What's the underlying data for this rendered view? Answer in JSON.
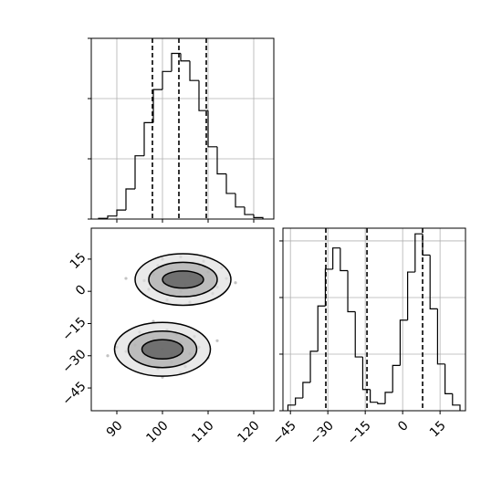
{
  "chart_data": [
    {
      "type": "histogram",
      "bins": [
        86,
        88,
        90,
        92,
        94,
        96,
        98,
        100,
        102,
        104,
        106,
        108,
        110,
        112,
        114,
        116,
        118,
        120,
        122
      ],
      "values": [
        5,
        20,
        60,
        200,
        420,
        640,
        860,
        980,
        1100,
        1050,
        920,
        720,
        480,
        300,
        170,
        80,
        30,
        10
      ],
      "quantiles": [
        97.8,
        103.6,
        109.6
      ],
      "xlim": [
        84.4,
        124.4
      ],
      "xticks": [
        90,
        100,
        110,
        120
      ],
      "ylim": [
        0,
        1200
      ],
      "yticks": [
        0,
        400,
        800,
        1200
      ],
      "grid": true,
      "color": "#000000"
    },
    {
      "type": "scatter",
      "x": [
        98,
        100,
        102,
        104,
        106,
        108,
        110,
        112,
        96,
        114,
        103,
        107,
        101,
        109,
        99,
        105,
        111,
        97,
        113,
        104,
        92,
        116,
        106,
        100,
        108,
        94,
        96,
        98,
        100,
        102,
        104,
        106,
        92,
        108,
        99,
        101,
        97,
        103,
        95,
        105,
        110,
        90,
        100,
        98,
        104,
        88,
        112,
        96,
        102,
        107
      ],
      "y": [
        8,
        3,
        10,
        0,
        7,
        4,
        9,
        2,
        5,
        6,
        13,
        -2,
        -4,
        14,
        12,
        3,
        -1,
        1,
        11,
        16,
        6,
        4,
        -5,
        15,
        12,
        -25,
        -30,
        -22,
        -27,
        -33,
        -24,
        -29,
        -28,
        -26,
        -36,
        -18,
        -34,
        -20,
        -19,
        -35,
        -31,
        -26,
        -40,
        -14,
        -38,
        -30,
        -23,
        -26,
        -29,
        -21
      ],
      "contours": [
        {
          "cx": 104.5,
          "cy": 5.5,
          "rx": 10.5,
          "ry": 12
        },
        {
          "cx": 104.5,
          "cy": 5.5,
          "rx": 7.5,
          "ry": 8
        },
        {
          "cx": 104.5,
          "cy": 5.5,
          "rx": 4.5,
          "ry": 4
        },
        {
          "cx": 100,
          "cy": -27,
          "rx": 10.5,
          "ry": 12.5
        },
        {
          "cx": 100,
          "cy": -27,
          "rx": 7.5,
          "ry": 8.5
        },
        {
          "cx": 100,
          "cy": -27,
          "rx": 4.5,
          "ry": 4.5
        }
      ],
      "xlim": [
        84.4,
        124.4
      ],
      "xticks": [
        90,
        100,
        110,
        120
      ],
      "ylim": [
        -55.6,
        29.4
      ],
      "yticks": [
        15,
        0,
        {
          "value": -15,
          "label": "−15"
        },
        {
          "value": -30,
          "label": "−30"
        },
        {
          "value": -45,
          "label": "−45"
        }
      ],
      "color": "#000000"
    },
    {
      "type": "histogram",
      "bins": [
        -46,
        -43,
        -40,
        -37,
        -34,
        -31,
        -28,
        -25,
        -22,
        -19,
        -16,
        -13,
        -10,
        -7,
        -4,
        -1,
        2,
        5,
        8,
        11,
        14,
        17,
        20,
        23
      ],
      "values": [
        40,
        90,
        200,
        420,
        740,
        1000,
        1150,
        990,
        700,
        380,
        150,
        60,
        50,
        130,
        320,
        640,
        980,
        1250,
        1100,
        720,
        330,
        120,
        40
      ],
      "quantiles": [
        -30.8,
        -14.3,
        8.0
      ],
      "xlim": [
        -48,
        25.2
      ],
      "xticks": [
        {
          "value": -45,
          "label": "−45"
        },
        {
          "value": -30,
          "label": "−30"
        },
        {
          "value": -15,
          "label": "−15"
        },
        0,
        15
      ],
      "ylim": [
        0,
        1290
      ],
      "yticks": [
        0,
        400,
        800,
        1200
      ],
      "grid": true,
      "color": "#000000"
    }
  ]
}
